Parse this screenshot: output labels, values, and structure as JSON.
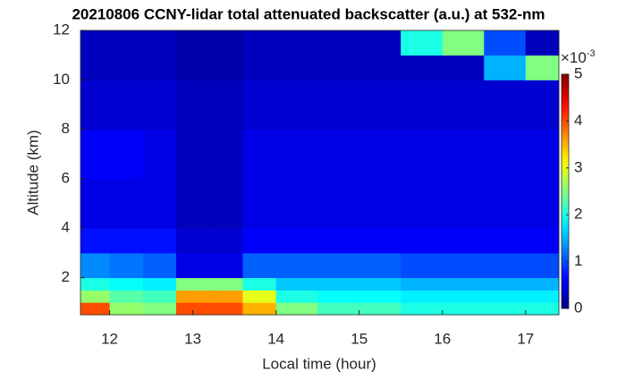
{
  "chart_data": {
    "type": "heatmap",
    "title": "20210806 CCNY-lidar total attenuated backscatter (a.u.) at 532-nm",
    "xlabel": "Local time (hour)",
    "ylabel": "Altitude (km)",
    "colormap": "jet",
    "x_bins": [
      11.65,
      12,
      12.4,
      12.8,
      13.2,
      13.6,
      14,
      14.5,
      15,
      15.5,
      16,
      16.5,
      17,
      17.4
    ],
    "y_bins": [
      0.5,
      1,
      1.5,
      2,
      3,
      4,
      6,
      8,
      10,
      11,
      12
    ],
    "values": [
      [
        4,
        2.6,
        2.5,
        4,
        4,
        3.5,
        2.5,
        2.2,
        2.2,
        2,
        2,
        2,
        2
      ],
      [
        2.6,
        2.3,
        2.2,
        3.6,
        3.6,
        3,
        2,
        1.9,
        1.9,
        1.8,
        1.8,
        1.8,
        1.8
      ],
      [
        2,
        1.9,
        1.8,
        2.5,
        2.5,
        2,
        1.6,
        1.6,
        1.6,
        1.5,
        1.5,
        1.5,
        1.5
      ],
      [
        1.3,
        1.2,
        1.1,
        0.5,
        0.5,
        1.1,
        1.1,
        1.1,
        1.1,
        1,
        1,
        1,
        1
      ],
      [
        0.7,
        0.7,
        0.7,
        0.4,
        0.4,
        0.6,
        0.6,
        0.6,
        0.6,
        0.6,
        0.6,
        0.6,
        0.6
      ],
      [
        0.5,
        0.5,
        0.5,
        0.3,
        0.3,
        0.5,
        0.5,
        0.5,
        0.5,
        0.5,
        0.5,
        0.5,
        0.5
      ],
      [
        0.6,
        0.6,
        0.5,
        0.3,
        0.3,
        0.5,
        0.5,
        0.5,
        0.5,
        0.5,
        0.5,
        0.5,
        0.5
      ],
      [
        0.4,
        0.4,
        0.4,
        0.3,
        0.3,
        0.4,
        0.4,
        0.4,
        0.4,
        0.4,
        0.4,
        0.4,
        0.4
      ],
      [
        0.3,
        0.3,
        0.3,
        0.2,
        0.2,
        0.3,
        0.3,
        0.3,
        0.3,
        0.3,
        0.3,
        1.5,
        2.5
      ],
      [
        0.3,
        0.3,
        0.3,
        0.2,
        0.2,
        0.3,
        0.3,
        0.3,
        0.3,
        2,
        2.5,
        1,
        0.3
      ]
    ],
    "xlim": [
      11.65,
      17.4
    ],
    "xticks": [
      12,
      13,
      14,
      15,
      16,
      17
    ],
    "ylim": [
      0.5,
      12
    ],
    "yticks": [
      2,
      4,
      6,
      8,
      10,
      12
    ],
    "clim": [
      0,
      5
    ],
    "cticks": [
      0,
      1,
      2,
      3,
      4,
      5
    ],
    "colorbar_scale_label": "×10",
    "colorbar_scale_exponent": "-3"
  }
}
